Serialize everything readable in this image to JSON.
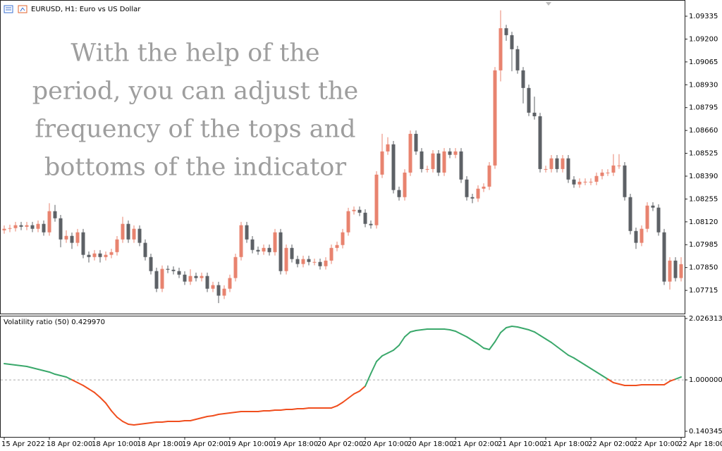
{
  "chart_data": [
    {
      "type": "candlestick",
      "title": "EURUSD, H1:  Euro vs US Dollar",
      "annotation_lines": [
        "With the help of the",
        "period, you can adjust the",
        "frequency of the tops and",
        "bottoms of the indicator"
      ],
      "categories": [
        "15 Apr 2022",
        null,
        null,
        null,
        null,
        null,
        null,
        null,
        "18 Apr 02:00",
        null,
        null,
        null,
        null,
        null,
        null,
        null,
        "18 Apr 10:00",
        null,
        null,
        null,
        null,
        null,
        null,
        null,
        "18 Apr 18:00",
        null,
        null,
        null,
        null,
        null,
        null,
        null,
        "19 Apr 02:00",
        null,
        null,
        null,
        null,
        null,
        null,
        null,
        "19 Apr 10:00",
        null,
        null,
        null,
        null,
        null,
        null,
        null,
        "19 Apr 18:00",
        null,
        null,
        null,
        null,
        null,
        null,
        null,
        "20 Apr 02:00",
        null,
        null,
        null,
        null,
        null,
        null,
        null,
        "20 Apr 10:00",
        null,
        null,
        null,
        null,
        null,
        null,
        null,
        "20 Apr 18:00",
        null,
        null,
        null,
        null,
        null,
        null,
        null,
        "21 Apr 02:00",
        null,
        null,
        null,
        null,
        null,
        null,
        null,
        "21 Apr 10:00",
        null,
        null,
        null,
        null,
        null,
        null,
        null,
        "21 Apr 18:00",
        null,
        null,
        null,
        null,
        null,
        null,
        null,
        "22 Apr 02:00",
        null,
        null,
        null,
        null,
        null,
        null,
        null,
        "22 Apr 10:00",
        null,
        null,
        null,
        null,
        null,
        null,
        null,
        "22 Apr 18:00"
      ],
      "open": [
        1.0807,
        1.08079,
        1.08083,
        1.081,
        1.08091,
        1.081,
        1.08079,
        1.08108,
        1.08058,
        1.08183,
        1.08141,
        1.08016,
        1.08037,
        1.07996,
        1.08058,
        1.07925,
        1.07912,
        1.07933,
        1.07912,
        1.07925,
        1.07941,
        1.08016,
        1.08108,
        1.08016,
        1.08079,
        1.07996,
        1.07912,
        1.07829,
        1.07725,
        1.07842,
        1.07837,
        1.07829,
        1.07808,
        1.07767,
        1.078,
        1.07788,
        1.078,
        1.07725,
        1.07746,
        1.07684,
        1.07725,
        1.07788,
        1.07912,
        1.081,
        1.08016,
        1.07954,
        1.07945,
        1.07966,
        1.07941,
        1.08058,
        1.07829,
        1.07966,
        1.079,
        1.07871,
        1.079,
        1.07883,
        1.07883,
        1.07858,
        1.07891,
        1.07966,
        1.07983,
        1.08058,
        1.08183,
        1.08191,
        1.08174,
        1.08108,
        1.081,
        1.08399,
        1.08536,
        1.08578,
        1.08308,
        1.08266,
        1.08411,
        1.0864,
        1.08536,
        1.08432,
        1.08432,
        1.08524,
        1.08411,
        1.08536,
        1.08516,
        1.08536,
        1.0837,
        1.08266,
        1.08258,
        1.08316,
        1.08328,
        1.08453,
        1.09015,
        1.09264,
        1.09223,
        1.0914,
        1.09015,
        1.08911,
        1.08765,
        1.08744,
        1.08432,
        1.08432,
        1.08495,
        1.08432,
        1.08495,
        1.0837,
        1.08341,
        1.08357,
        1.08357,
        1.08357,
        1.08391,
        1.08411,
        1.08411,
        1.08453,
        1.08453,
        1.08266,
        1.08066,
        1.07996,
        1.08079,
        1.08216,
        1.08204,
        1.08058,
        1.07767,
        1.07891,
        1.07788
      ],
      "high": [
        1.08099,
        1.08103,
        1.0812,
        1.0812,
        1.0812,
        1.0812,
        1.08128,
        1.08128,
        1.0823,
        1.0822,
        1.08161,
        1.0807,
        1.08057,
        1.08078,
        1.08078,
        1.07945,
        1.07953,
        1.07953,
        1.07945,
        1.07961,
        1.08036,
        1.0815,
        1.08128,
        1.08099,
        1.08099,
        1.08016,
        1.07932,
        1.07849,
        1.07862,
        1.07862,
        1.07857,
        1.07849,
        1.07828,
        1.0784,
        1.0782,
        1.0782,
        1.0782,
        1.07766,
        1.07766,
        1.07745,
        1.07808,
        1.07932,
        1.0812,
        1.0812,
        1.08036,
        1.07974,
        1.07986,
        1.07986,
        1.08078,
        1.08078,
        1.07986,
        1.07986,
        1.0792,
        1.0792,
        1.0792,
        1.07903,
        1.07903,
        1.07911,
        1.07986,
        1.08003,
        1.08078,
        1.08203,
        1.08211,
        1.08211,
        1.08194,
        1.08128,
        1.08419,
        1.0864,
        1.0862,
        1.08598,
        1.08328,
        1.08431,
        1.0866,
        1.0866,
        1.08556,
        1.08452,
        1.08544,
        1.08544,
        1.08556,
        1.08556,
        1.08556,
        1.08556,
        1.0839,
        1.08286,
        1.08336,
        1.08348,
        1.08473,
        1.09035,
        1.0937,
        1.09284,
        1.09243,
        1.0916,
        1.09035,
        1.08931,
        1.0886,
        1.08764,
        1.08452,
        1.08515,
        1.08515,
        1.08515,
        1.08515,
        1.0839,
        1.08377,
        1.08377,
        1.08377,
        1.08411,
        1.08431,
        1.08431,
        1.0852,
        1.0852,
        1.08473,
        1.08286,
        1.08086,
        1.08099,
        1.08236,
        1.08236,
        1.08224,
        1.08078,
        1.07911,
        1.07911,
        1.07911
      ],
      "low": [
        1.0805,
        1.08059,
        1.08063,
        1.08071,
        1.08071,
        1.08059,
        1.08059,
        1.08038,
        1.08038,
        1.08121,
        1.0797,
        1.07996,
        1.0796,
        1.07976,
        1.07905,
        1.0788,
        1.07892,
        1.0788,
        1.07892,
        1.07905,
        1.07921,
        1.07996,
        1.07996,
        1.07996,
        1.07976,
        1.07892,
        1.07809,
        1.07705,
        1.07705,
        1.07817,
        1.07809,
        1.07788,
        1.07747,
        1.07747,
        1.07768,
        1.07768,
        1.07705,
        1.07705,
        1.0764,
        1.07664,
        1.07705,
        1.07768,
        1.07892,
        1.07996,
        1.07934,
        1.07925,
        1.07925,
        1.07921,
        1.07921,
        1.07809,
        1.07809,
        1.0788,
        1.07851,
        1.07851,
        1.07863,
        1.07863,
        1.07838,
        1.07838,
        1.07871,
        1.07946,
        1.07963,
        1.08038,
        1.08163,
        1.08154,
        1.08088,
        1.0808,
        1.0808,
        1.08379,
        1.08516,
        1.08288,
        1.08246,
        1.08246,
        1.08391,
        1.08516,
        1.08412,
        1.08412,
        1.08412,
        1.08391,
        1.08391,
        1.08496,
        1.08496,
        1.0835,
        1.08246,
        1.0823,
        1.08238,
        1.08296,
        1.08308,
        1.08433,
        1.0895,
        1.0919,
        1.0901,
        1.08995,
        1.0882,
        1.08745,
        1.08724,
        1.08412,
        1.08412,
        1.08412,
        1.08412,
        1.08412,
        1.0835,
        1.08321,
        1.08321,
        1.08337,
        1.08337,
        1.08337,
        1.08371,
        1.08391,
        1.08391,
        1.08433,
        1.08246,
        1.08046,
        1.0796,
        1.07976,
        1.08059,
        1.08184,
        1.08038,
        1.07747,
        1.0772,
        1.07768,
        1.07768
      ],
      "close": [
        1.08079,
        1.08083,
        1.081,
        1.08091,
        1.081,
        1.08079,
        1.08108,
        1.08058,
        1.08183,
        1.08141,
        1.08016,
        1.08037,
        1.07996,
        1.08058,
        1.07925,
        1.07912,
        1.07933,
        1.07912,
        1.07925,
        1.07941,
        1.08016,
        1.08108,
        1.08016,
        1.08079,
        1.07996,
        1.07912,
        1.07829,
        1.07725,
        1.07842,
        1.07837,
        1.07829,
        1.07808,
        1.07767,
        1.078,
        1.07788,
        1.078,
        1.07725,
        1.07746,
        1.07684,
        1.07725,
        1.07788,
        1.07912,
        1.081,
        1.08016,
        1.07954,
        1.07945,
        1.07966,
        1.07941,
        1.08058,
        1.07829,
        1.07966,
        1.079,
        1.07871,
        1.079,
        1.07883,
        1.07883,
        1.07858,
        1.07891,
        1.07966,
        1.07983,
        1.08058,
        1.08183,
        1.08191,
        1.08174,
        1.08108,
        1.081,
        1.08399,
        1.08536,
        1.08578,
        1.08308,
        1.08266,
        1.08411,
        1.0864,
        1.08536,
        1.08432,
        1.08432,
        1.08524,
        1.08411,
        1.08536,
        1.08516,
        1.08536,
        1.0837,
        1.08266,
        1.08258,
        1.08316,
        1.08328,
        1.08453,
        1.09015,
        1.09264,
        1.09223,
        1.0914,
        1.09015,
        1.08911,
        1.08765,
        1.08744,
        1.08432,
        1.08432,
        1.08495,
        1.08432,
        1.08495,
        1.0837,
        1.08341,
        1.08357,
        1.08357,
        1.08357,
        1.08391,
        1.08411,
        1.08411,
        1.08453,
        1.08453,
        1.08266,
        1.08066,
        1.07996,
        1.08079,
        1.08216,
        1.08204,
        1.08058,
        1.07767,
        1.07891,
        1.07788,
        1.0787
      ],
      "color_up": "#e8836f",
      "color_down": "#5d6166",
      "ylim": [
        1.07578,
        1.0941
      ],
      "yticks": [
        1.09335,
        {
          "value": 1.092,
          "label": "1.09200"
        },
        1.09065,
        {
          "value": 1.0893,
          "label": "1.08930"
        },
        1.08795,
        {
          "value": 1.0866,
          "label": "1.08660"
        },
        1.08525,
        {
          "value": 1.0839,
          "label": "1.08390"
        },
        1.08255,
        {
          "value": 1.0812,
          "label": "1.08120"
        },
        1.07985,
        {
          "value": 1.0785,
          "label": "1.07850"
        },
        1.07715
      ]
    },
    {
      "type": "line",
      "title": "Volatility ratio (50) 0.429970",
      "values": [
        1.2719,
        1.2601,
        1.2484,
        1.2366,
        1.2248,
        1.2012,
        1.1776,
        1.1541,
        1.1305,
        1.0951,
        1.0716,
        1.048,
        1.0008,
        0.9537,
        0.9065,
        0.8476,
        0.7887,
        0.7062,
        0.6119,
        0.4822,
        0.3761,
        0.3054,
        0.2582,
        0.2465,
        0.2582,
        0.27,
        0.2818,
        0.2936,
        0.2936,
        0.3054,
        0.3054,
        0.3054,
        0.3172,
        0.3172,
        0.3408,
        0.3643,
        0.3879,
        0.3997,
        0.4233,
        0.4351,
        0.4468,
        0.4586,
        0.4704,
        0.4704,
        0.4704,
        0.4704,
        0.4822,
        0.4822,
        0.494,
        0.494,
        0.5058,
        0.5058,
        0.5176,
        0.5176,
        0.5294,
        0.5294,
        0.5294,
        0.5294,
        0.5294,
        0.5647,
        0.6236,
        0.6944,
        0.7651,
        0.8122,
        0.8947,
        1.1069,
        1.3073,
        1.4016,
        1.4487,
        1.4959,
        1.5784,
        1.7198,
        1.8023,
        1.8259,
        1.8377,
        1.8495,
        1.8495,
        1.8495,
        1.8495,
        1.8377,
        1.8141,
        1.767,
        1.7198,
        1.6609,
        1.602,
        1.5312,
        1.5077,
        1.6373,
        1.7906,
        1.8731,
        1.8966,
        1.8849,
        1.8613,
        1.8377,
        1.8023,
        1.7434,
        1.6845,
        1.6255,
        1.5548,
        1.4841,
        1.4134,
        1.3662,
        1.3073,
        1.2484,
        1.1894,
        1.1305,
        1.0716,
        1.0126,
        0.9537,
        0.9301,
        0.9065,
        0.9065,
        0.9065,
        0.9183,
        0.9183,
        0.9183,
        0.9183,
        0.9183,
        0.9773,
        1.0126,
        1.048
      ],
      "threshold": 1,
      "color_above": "#3aa86b",
      "color_below": "#f04e1e",
      "ylim": [
        0.140345,
        2.026313
      ],
      "yticks": [
        2.026313,
        {
          "value": 1,
          "label": "1.000000"
        },
        0.140345
      ]
    }
  ]
}
